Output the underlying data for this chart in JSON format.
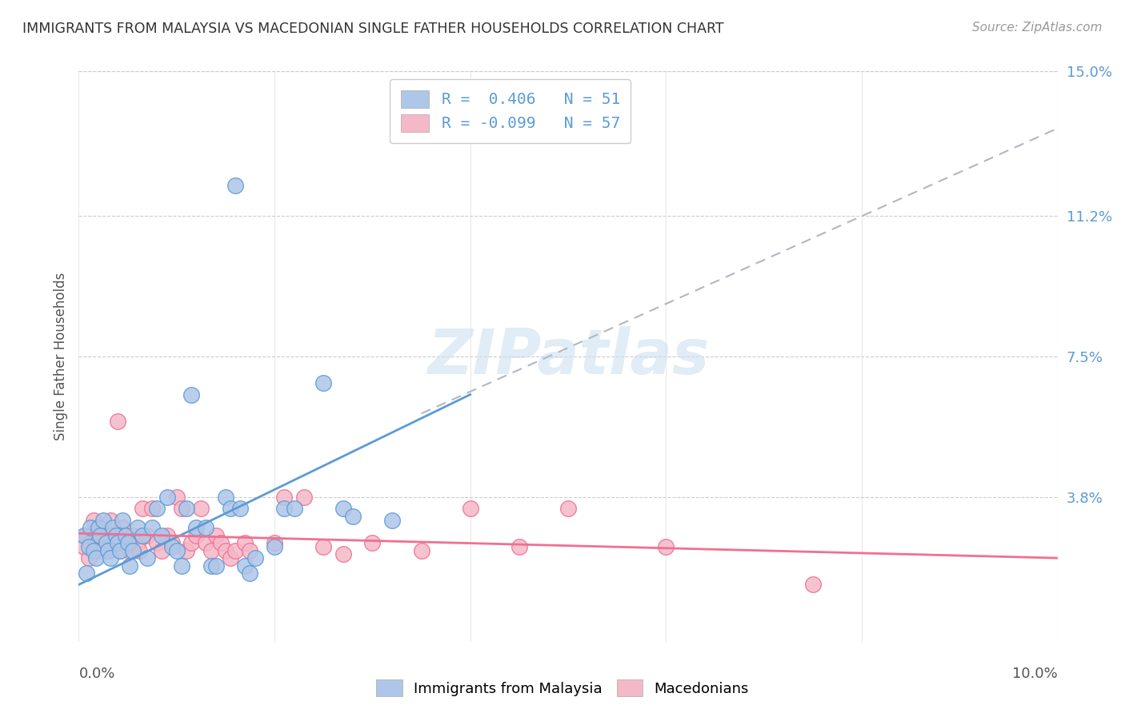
{
  "title": "IMMIGRANTS FROM MALAYSIA VS MACEDONIAN SINGLE FATHER HOUSEHOLDS CORRELATION CHART",
  "source": "Source: ZipAtlas.com",
  "ylabel": "Single Father Households",
  "xlim": [
    0.0,
    10.0
  ],
  "ylim": [
    0.0,
    15.0
  ],
  "ytick_labels": [
    "15.0%",
    "11.2%",
    "7.5%",
    "3.8%"
  ],
  "ytick_values": [
    15.0,
    11.2,
    7.5,
    3.8
  ],
  "xtick_values": [
    0.0,
    2.0,
    4.0,
    6.0,
    8.0,
    10.0
  ],
  "legend1_label": "R =  0.406   N = 51",
  "legend2_label": "R = -0.099   N = 57",
  "legend1_color": "#aec6e8",
  "legend2_color": "#f4b8c8",
  "line1_color": "#5b9bd5",
  "line2_color": "#f07090",
  "watermark": "ZIPatlas",
  "blue_scatter": [
    [
      0.05,
      2.8
    ],
    [
      0.08,
      1.8
    ],
    [
      0.1,
      2.5
    ],
    [
      0.12,
      3.0
    ],
    [
      0.15,
      2.4
    ],
    [
      0.18,
      2.2
    ],
    [
      0.2,
      3.0
    ],
    [
      0.22,
      2.8
    ],
    [
      0.25,
      3.2
    ],
    [
      0.28,
      2.6
    ],
    [
      0.3,
      2.4
    ],
    [
      0.32,
      2.2
    ],
    [
      0.35,
      3.0
    ],
    [
      0.38,
      2.8
    ],
    [
      0.4,
      2.6
    ],
    [
      0.42,
      2.4
    ],
    [
      0.45,
      3.2
    ],
    [
      0.48,
      2.8
    ],
    [
      0.5,
      2.6
    ],
    [
      0.52,
      2.0
    ],
    [
      0.55,
      2.4
    ],
    [
      0.6,
      3.0
    ],
    [
      0.65,
      2.8
    ],
    [
      0.7,
      2.2
    ],
    [
      0.75,
      3.0
    ],
    [
      0.8,
      3.5
    ],
    [
      0.85,
      2.8
    ],
    [
      0.9,
      3.8
    ],
    [
      0.95,
      2.5
    ],
    [
      1.0,
      2.4
    ],
    [
      1.05,
      2.0
    ],
    [
      1.1,
      3.5
    ],
    [
      1.15,
      6.5
    ],
    [
      1.2,
      3.0
    ],
    [
      1.3,
      3.0
    ],
    [
      1.35,
      2.0
    ],
    [
      1.4,
      2.0
    ],
    [
      1.5,
      3.8
    ],
    [
      1.55,
      3.5
    ],
    [
      1.65,
      3.5
    ],
    [
      1.7,
      2.0
    ],
    [
      1.75,
      1.8
    ],
    [
      1.8,
      2.2
    ],
    [
      2.0,
      2.5
    ],
    [
      2.1,
      3.5
    ],
    [
      2.2,
      3.5
    ],
    [
      2.5,
      6.8
    ],
    [
      2.7,
      3.5
    ],
    [
      2.8,
      3.3
    ],
    [
      3.2,
      3.2
    ],
    [
      1.6,
      12.0
    ]
  ],
  "pink_scatter": [
    [
      0.05,
      2.5
    ],
    [
      0.08,
      2.8
    ],
    [
      0.1,
      2.2
    ],
    [
      0.12,
      2.6
    ],
    [
      0.15,
      3.2
    ],
    [
      0.18,
      2.8
    ],
    [
      0.2,
      2.4
    ],
    [
      0.22,
      3.0
    ],
    [
      0.25,
      2.8
    ],
    [
      0.28,
      2.6
    ],
    [
      0.3,
      2.4
    ],
    [
      0.32,
      3.2
    ],
    [
      0.35,
      2.8
    ],
    [
      0.38,
      2.6
    ],
    [
      0.4,
      5.8
    ],
    [
      0.42,
      2.4
    ],
    [
      0.45,
      3.0
    ],
    [
      0.48,
      2.8
    ],
    [
      0.5,
      2.6
    ],
    [
      0.52,
      2.4
    ],
    [
      0.55,
      2.8
    ],
    [
      0.6,
      2.6
    ],
    [
      0.62,
      2.4
    ],
    [
      0.65,
      3.5
    ],
    [
      0.7,
      2.8
    ],
    [
      0.75,
      3.5
    ],
    [
      0.8,
      2.6
    ],
    [
      0.85,
      2.4
    ],
    [
      0.9,
      2.8
    ],
    [
      0.95,
      2.6
    ],
    [
      1.0,
      3.8
    ],
    [
      1.05,
      3.5
    ],
    [
      1.1,
      2.4
    ],
    [
      1.15,
      2.6
    ],
    [
      1.2,
      2.8
    ],
    [
      1.25,
      3.5
    ],
    [
      1.3,
      2.6
    ],
    [
      1.35,
      2.4
    ],
    [
      1.4,
      2.8
    ],
    [
      1.45,
      2.6
    ],
    [
      1.5,
      2.4
    ],
    [
      1.55,
      2.2
    ],
    [
      1.6,
      2.4
    ],
    [
      1.7,
      2.6
    ],
    [
      1.75,
      2.4
    ],
    [
      2.0,
      2.6
    ],
    [
      2.1,
      3.8
    ],
    [
      2.3,
      3.8
    ],
    [
      2.5,
      2.5
    ],
    [
      2.7,
      2.3
    ],
    [
      3.0,
      2.6
    ],
    [
      3.5,
      2.4
    ],
    [
      4.0,
      3.5
    ],
    [
      4.5,
      2.5
    ],
    [
      5.0,
      3.5
    ],
    [
      6.0,
      2.5
    ],
    [
      7.5,
      1.5
    ]
  ],
  "blue_line": {
    "x0": 0.0,
    "y0": 1.5,
    "x1": 4.0,
    "y1": 6.5
  },
  "blue_dashed_line": {
    "x0": 3.5,
    "y0": 6.0,
    "x1": 10.0,
    "y1": 13.5
  },
  "pink_line": {
    "x0": 0.0,
    "y0": 2.85,
    "x1": 10.0,
    "y1": 2.2
  }
}
